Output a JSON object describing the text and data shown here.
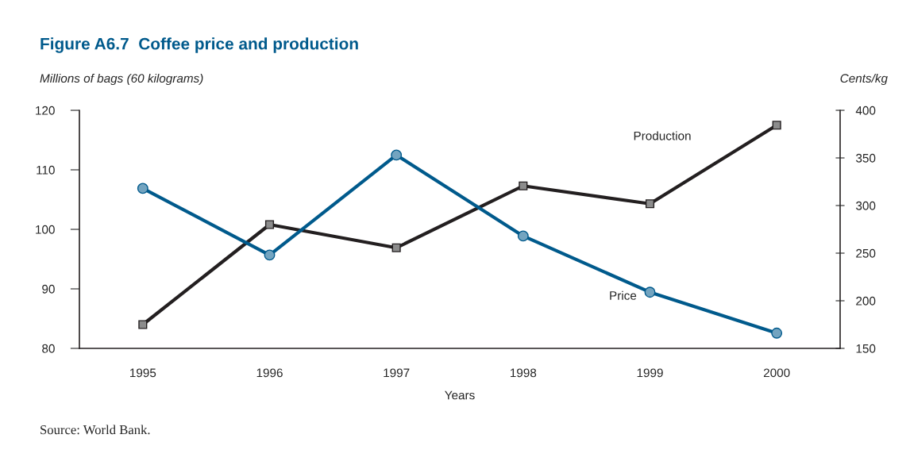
{
  "chart_data": {
    "type": "line",
    "title": "Figure A6.7  Coffee price and production",
    "ylabel": "Millions of bags (60 kilograms)",
    "y2label": "Cents/kg",
    "xlabel": "Years",
    "categories": [
      "1995",
      "1996",
      "1997",
      "1998",
      "1999",
      "2000"
    ],
    "series": [
      {
        "name": "Production",
        "color": "#231f20",
        "marker": "square",
        "values": [
          84,
          100.8,
          96.9,
          107.3,
          104.3,
          117.5
        ]
      },
      {
        "name": "Price",
        "color": "#005a8c",
        "marker": "circle",
        "axis": "y2",
        "values": [
          318,
          248,
          353,
          268,
          209,
          166
        ]
      }
    ],
    "ylim": [
      80,
      120
    ],
    "yticks": [
      80,
      90,
      100,
      110,
      120
    ],
    "y2lim": [
      150,
      400
    ],
    "y2ticks": [
      150,
      200,
      250,
      300,
      350,
      400
    ],
    "grid": false,
    "legend": false,
    "annotations": [
      "Source: World Bank."
    ]
  }
}
